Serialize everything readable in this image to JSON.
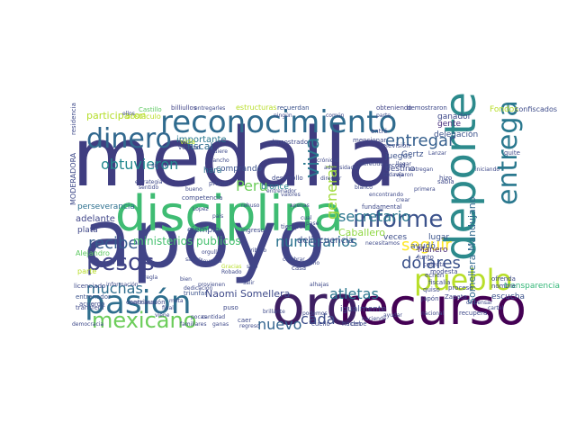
{
  "cloud": {
    "words": [
      {
        "text": "medalla",
        "color": "#3f3d80"
      },
      {
        "text": "apoyo",
        "color": "#414487"
      },
      {
        "text": "disciplina",
        "color": "#3fbc73"
      },
      {
        "text": "reconocimiento",
        "color": "#2f6b8e"
      },
      {
        "text": "recurso",
        "color": "#440154"
      },
      {
        "text": "oro",
        "color": "#3e1f63"
      },
      {
        "text": "deporte",
        "color": "#2c8a8c"
      },
      {
        "text": "pasión",
        "color": "#2f6f8e"
      },
      {
        "text": "pueblo",
        "color": "#b8de29"
      },
      {
        "text": "entrega",
        "color": "#2a788e"
      },
      {
        "text": "dinero",
        "color": "#31688e"
      },
      {
        "text": "mexicano",
        "color": "#6ccd5a"
      },
      {
        "text": "pesos",
        "color": "#414487"
      },
      {
        "text": "informe",
        "color": "#3b528b"
      },
      {
        "text": "recibe",
        "color": "#365c8d"
      },
      {
        "text": "viva",
        "color": "#2a788e"
      },
      {
        "text": "entregar",
        "color": "#355f8d"
      },
      {
        "text": "obtuvieron",
        "color": "#23888e"
      },
      {
        "text": "muchas",
        "color": "#2e6e8e"
      },
      {
        "text": "general",
        "color": "#a0da39"
      },
      {
        "text": "secretario",
        "color": "#2a768e"
      },
      {
        "text": "dólares",
        "color": "#3b528b"
      },
      {
        "text": "seguir",
        "color": "#fde725"
      },
      {
        "text": "nuevo",
        "color": "#32648e"
      },
      {
        "text": "cada",
        "color": "#3d4d8a"
      },
      {
        "text": "atletas",
        "color": "#2a768e"
      },
      {
        "text": "numerarios",
        "color": "#2c728e"
      },
      {
        "text": "Peru",
        "color": "#6ccd5a"
      },
      {
        "text": "ministerios publicos",
        "color": "#46c06f"
      },
      {
        "text": "Naomi Somellera",
        "color": "#3e4989"
      },
      {
        "text": "Somellera Mandujano",
        "color": "#31688e"
      },
      {
        "text": "Caballero",
        "color": "#90d743"
      },
      {
        "text": "participaron",
        "color": "#b5de2b"
      },
      {
        "text": "fiscal",
        "color": "#2e6e8e"
      },
      {
        "text": "importante",
        "color": "#2a788e"
      },
      {
        "text": "comprando",
        "color": "#3b528b"
      },
      {
        "text": "delincuencia",
        "color": "#3e4c8a"
      },
      {
        "text": "perseverancia",
        "color": "#2d708e"
      },
      {
        "text": "ejemplo",
        "color": "#3b528b"
      },
      {
        "text": "adelante",
        "color": "#404688"
      },
      {
        "text": "plata",
        "color": "#3f4788"
      },
      {
        "text": "hará",
        "color": "#2c728e"
      },
      {
        "text": "bronce",
        "color": "#26828e"
      },
      {
        "text": "escucha",
        "color": "#3b528b"
      },
      {
        "text": "transparencia",
        "color": "#35b779"
      },
      {
        "text": "igualmente",
        "color": "#3e4a89"
      },
      {
        "text": "Manero",
        "color": "#482878"
      },
      {
        "text": "lugar",
        "color": "#3a538b"
      },
      {
        "text": "veces",
        "color": "#3d4e8a"
      },
      {
        "text": "ayudó",
        "color": "#3b528b"
      },
      {
        "text": "destino",
        "color": "#3e4a89"
      },
      {
        "text": "juegos",
        "color": "#3b528b"
      },
      {
        "text": "gente",
        "color": "#472d7b"
      },
      {
        "text": "ganador",
        "color": "#3e4989"
      },
      {
        "text": "delegación",
        "color": "#3b528b"
      },
      {
        "text": "Gertz",
        "color": "#3b528b"
      },
      {
        "text": "Fondos",
        "color": "#b8de29"
      },
      {
        "text": "confiscados",
        "color": "#3e4c8a"
      },
      {
        "text": "demostraron",
        "color": "#3e4989"
      },
      {
        "text": "obteniendo",
        "color": "#414487"
      },
      {
        "text": "recuerdan",
        "color": "#3b528b"
      },
      {
        "text": "estructuras",
        "color": "#b8de29"
      },
      {
        "text": "billiullos",
        "color": "#414487"
      },
      {
        "text": "Castillo",
        "color": "#5ec962"
      },
      {
        "text": "obstáculo",
        "color": "#b8de29"
      },
      {
        "text": "MODERADORA",
        "color": "#3e4989"
      },
      {
        "text": "Alejandro",
        "color": "#5ec962"
      },
      {
        "text": "parte",
        "color": "#b8de29"
      },
      {
        "text": "entrenador",
        "color": "#3b528b"
      },
      {
        "text": "transferir",
        "color": "#3e4989"
      },
      {
        "text": "democracia",
        "color": "#3e4989"
      },
      {
        "text": "contribución",
        "color": "#3e4989"
      },
      {
        "text": "triunfar",
        "color": "#3b528b"
      },
      {
        "text": "recupera",
        "color": "#3e4989"
      },
      {
        "text": "Zapata",
        "color": "#3e4989"
      },
      {
        "text": "fiscalía",
        "color": "#3e4989"
      },
      {
        "text": "modesta",
        "color": "#3e4989"
      },
      {
        "text": "colecta",
        "color": "#3e4989"
      },
      {
        "text": "junto",
        "color": "#3e4989"
      },
      {
        "text": "ingresos",
        "color": "#3e4989"
      },
      {
        "text": "tiempo",
        "color": "#3e4989"
      },
      {
        "text": "fundamental",
        "color": "#3e4989"
      },
      {
        "text": "mencionar",
        "color": "#3e4989"
      },
      {
        "text": "entró",
        "color": "#3e4989"
      },
      {
        "text": "verdad",
        "color": "#3e4989"
      },
      {
        "text": "vida",
        "color": "#b8de29"
      },
      {
        "text": "demostrado",
        "color": "#3e4989"
      },
      {
        "text": "desarrollo",
        "color": "#3e4989"
      },
      {
        "text": "competencia",
        "color": "#3e4989"
      },
      {
        "text": "primer",
        "color": "#3e4989"
      },
      {
        "text": "sigue",
        "color": "#3e4989"
      },
      {
        "text": "licenciado",
        "color": "#3e4989"
      },
      {
        "text": "acuerdo",
        "color": "#3e4989"
      },
      {
        "text": "cuello",
        "color": "#3e4989"
      },
      {
        "text": "hacen",
        "color": "#3e4989"
      },
      {
        "text": "caer",
        "color": "#3e4989"
      },
      {
        "text": "puso",
        "color": "#3e4989"
      },
      {
        "text": "casa",
        "color": "#3e4989"
      },
      {
        "text": "quiso",
        "color": "#3e4989"
      },
      {
        "text": "nombre",
        "color": "#3e4989"
      },
      {
        "text": "ofrenda",
        "color": "#3e4989"
      },
      {
        "text": "hizo",
        "color": "#3e4989"
      },
      {
        "text": "sabía",
        "color": "#3e4989"
      },
      {
        "text": "quite",
        "color": "#3e4989"
      },
      {
        "text": "record",
        "color": "#3e4989"
      },
      {
        "text": "televisión",
        "color": "#3e4989"
      },
      {
        "text": "debe",
        "color": "#3e4989"
      },
      {
        "text": "Japón",
        "color": "#3e4989"
      },
      {
        "text": "echen",
        "color": "#3e4989"
      },
      {
        "text": "proceso",
        "color": "#3e4989"
      },
      {
        "text": "residencia",
        "color": "#3e4989"
      },
      {
        "text": "ganas",
        "color": "#3e4989"
      },
      {
        "text": "regreso",
        "color": "#3e4989"
      },
      {
        "text": "cantidad",
        "color": "#3e4989"
      },
      {
        "text": "familiares",
        "color": "#3e4989"
      },
      {
        "text": "viene",
        "color": "#3e4989"
      },
      {
        "text": "final",
        "color": "#3e4989"
      },
      {
        "text": "meta",
        "color": "#3e4989"
      },
      {
        "text": "dedicación",
        "color": "#3e4989"
      },
      {
        "text": "provienen",
        "color": "#3e4989"
      },
      {
        "text": "orgullo",
        "color": "#3e4989"
      },
      {
        "text": "levanta",
        "color": "#3e4989"
      },
      {
        "text": "salir",
        "color": "#3e4989"
      },
      {
        "text": "sido",
        "color": "#3e4989"
      },
      {
        "text": "bien",
        "color": "#3e4989"
      },
      {
        "text": "saben",
        "color": "#3e4989"
      },
      {
        "text": "Gracias",
        "color": "#b8de29"
      },
      {
        "text": "entrenador",
        "color": "#3e4989"
      },
      {
        "text": "tributo",
        "color": "#3e4989"
      },
      {
        "text": "ningún",
        "color": "#3e4989"
      },
      {
        "text": "común",
        "color": "#3e4989"
      },
      {
        "text": "rancho",
        "color": "#3e4989"
      },
      {
        "text": "bueno",
        "color": "#3e4989"
      },
      {
        "text": "pocas",
        "color": "#3e4989"
      },
      {
        "text": "cual",
        "color": "#3e4989"
      },
      {
        "text": "celebrar",
        "color": "#3e4989"
      },
      {
        "text": "podemos",
        "color": "#3e4989"
      },
      {
        "text": "ayudar",
        "color": "#3e4989"
      },
      {
        "text": "haciendo",
        "color": "#3e4989"
      },
      {
        "text": "merecido",
        "color": "#3e4989"
      },
      {
        "text": "todavía",
        "color": "#3e4989"
      },
      {
        "text": "rajaron",
        "color": "#3e4989"
      },
      {
        "text": "primera",
        "color": "#3e4989"
      },
      {
        "text": "blanco",
        "color": "#3e4989"
      },
      {
        "text": "Lanzar",
        "color": "#3e4989"
      },
      {
        "text": "iniciando",
        "color": "#3e4989"
      },
      {
        "text": "entregan",
        "color": "#3e4989"
      },
      {
        "text": "llegar",
        "color": "#3e4989"
      },
      {
        "text": "Robado",
        "color": "#3e4989"
      },
      {
        "text": "mano",
        "color": "#3e4989"
      },
      {
        "text": "quiere",
        "color": "#3e4989"
      },
      {
        "text": "ellos",
        "color": "#3e4989"
      },
      {
        "text": "parte",
        "color": "#3e4989"
      },
      {
        "text": "entregarles",
        "color": "#3e4989"
      },
      {
        "text": "director",
        "color": "#3e4989"
      },
      {
        "text": "adversidades",
        "color": "#3e4989"
      },
      {
        "text": "brillante",
        "color": "#3e4989"
      },
      {
        "text": "apenas",
        "color": "#3e4989"
      },
      {
        "text": "dispensar",
        "color": "#3e4989"
      },
      {
        "text": "crear",
        "color": "#3e4989"
      },
      {
        "text": "encontrando",
        "color": "#3e4989"
      },
      {
        "text": "necesitamos",
        "color": "#3e4989"
      },
      {
        "text": "crónicas",
        "color": "#3e4989"
      },
      {
        "text": "cartel",
        "color": "#3e4989"
      },
      {
        "text": "nacional",
        "color": "#3e4989"
      },
      {
        "text": "regla",
        "color": "#3e4989"
      },
      {
        "text": "alhajas",
        "color": "#3e4989"
      },
      {
        "text": "información",
        "color": "#3e4989"
      },
      {
        "text": "mexicanos",
        "color": "#3e4989"
      },
      {
        "text": "país",
        "color": "#3e4989"
      },
      {
        "text": "rehuso",
        "color": "#3e4989"
      },
      {
        "text": "estrategia",
        "color": "#3e4989"
      },
      {
        "text": "sentido",
        "color": "#3e4989"
      },
      {
        "text": "valores",
        "color": "#3e4989"
      },
      {
        "text": "Lopez",
        "color": "#3e4989"
      },
      {
        "text": "pase",
        "color": "#3e4989"
      },
      {
        "text": "paso",
        "color": "#3e4989"
      },
      {
        "text": "camino",
        "color": "#3e4989"
      },
      {
        "text": "honor",
        "color": "#3e4989"
      },
      {
        "text": "lo",
        "color": "#3e4989"
      }
    ]
  }
}
